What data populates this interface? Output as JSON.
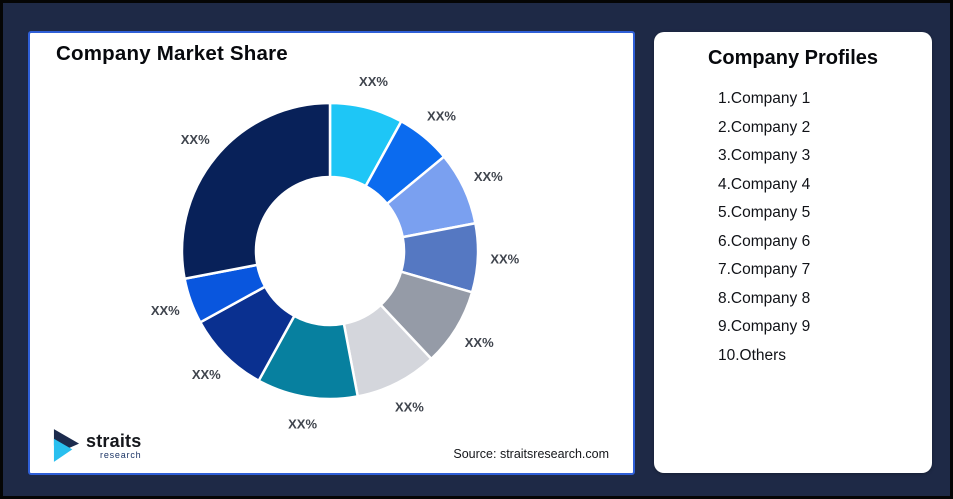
{
  "background": {
    "color": "#1E2946",
    "frame_border_color": "#050505"
  },
  "market_share_card": {
    "title": "Company Market Share",
    "source": "Source: straitsresearch.com",
    "accent_border_color": "#2F5FD7",
    "logo": {
      "brand": "straits",
      "sub": "research",
      "icon": "straits-arrow-icon",
      "icon_navy": "#1C2B4D",
      "icon_cyan": "#29BFEF"
    }
  },
  "chart_data": {
    "type": "pie",
    "subtype": "donut",
    "title": "Company Market Share",
    "start_angle": "top",
    "direction": "clockwise",
    "inner_radius_ratio": 0.5,
    "legend": "none",
    "gridlines": false,
    "segments": [
      {
        "label": "XX%",
        "value": 8,
        "color": "#1EC6F6"
      },
      {
        "label": "XX%",
        "value": 6,
        "color": "#0B6BEF"
      },
      {
        "label": "XX%",
        "value": 8,
        "color": "#7AA0F0"
      },
      {
        "label": "XX%",
        "value": 7.5,
        "color": "#5578C2"
      },
      {
        "label": "XX%",
        "value": 8.5,
        "color": "#959BA7"
      },
      {
        "label": "XX%",
        "value": 9,
        "color": "#D4D6DC"
      },
      {
        "label": "XX%",
        "value": 11,
        "color": "#07809F"
      },
      {
        "label": "XX%",
        "value": 9,
        "color": "#0A3090"
      },
      {
        "label": "XX%",
        "value": 5,
        "color": "#0956DE"
      },
      {
        "label": "XX%",
        "value": 28,
        "color": "#082159"
      }
    ]
  },
  "profiles_card": {
    "title": "Company Profiles",
    "items": [
      "1.Company 1",
      "2.Company 2",
      "3.Company 3",
      "4.Company 4",
      "5.Company 5",
      "6.Company 6",
      "7.Company 7",
      "8.Company 8",
      "9.Company 9",
      "10.Others"
    ]
  }
}
